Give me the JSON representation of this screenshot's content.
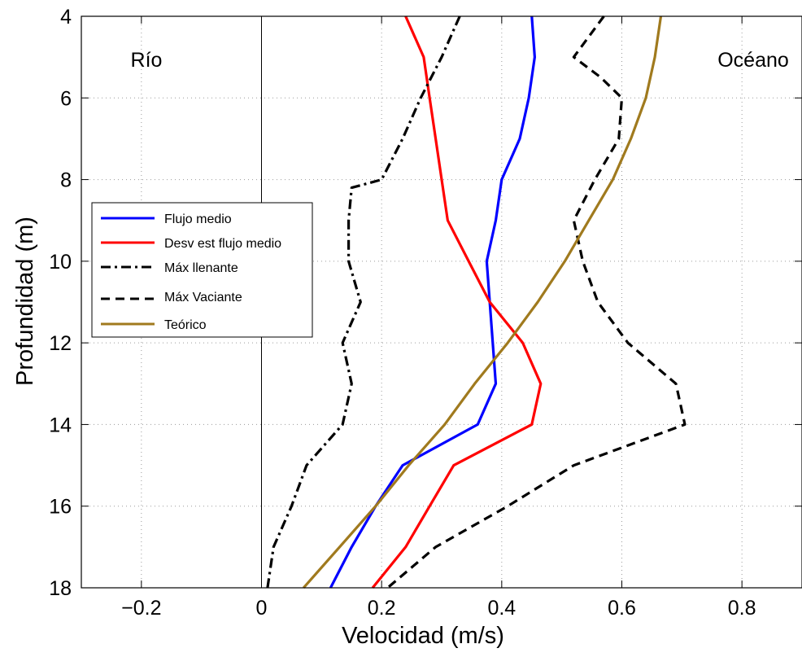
{
  "chart_data": {
    "type": "line",
    "title": "",
    "xlabel": "Velocidad (m/s)",
    "ylabel": "Profundidad (m)",
    "xlim": [
      -0.3,
      0.9
    ],
    "ylim": [
      4,
      18
    ],
    "y_reversed": true,
    "grid": true,
    "x_ticks": [
      -0.2,
      0,
      0.2,
      0.4,
      0.6,
      0.8
    ],
    "x_tick_labels": [
      "−0.2",
      "0",
      "0.2",
      "0.4",
      "0.6",
      "0.8"
    ],
    "y_ticks": [
      4,
      6,
      8,
      10,
      12,
      14,
      16,
      18
    ],
    "y_tick_labels": [
      "4",
      "6",
      "8",
      "10",
      "12",
      "14",
      "16",
      "18"
    ],
    "reference_line_x": 0,
    "legend_position": "middle-left",
    "annotations": [
      {
        "text": "Río",
        "x": -0.2,
        "y": 5
      },
      {
        "text": "Océano",
        "x": 0.8,
        "y": 5
      }
    ],
    "series": [
      {
        "name": "Flujo medio",
        "color": "#0000ff",
        "style": "solid",
        "points": [
          [
            0.45,
            4
          ],
          [
            0.455,
            5
          ],
          [
            0.445,
            6
          ],
          [
            0.43,
            7
          ],
          [
            0.4,
            8
          ],
          [
            0.39,
            9
          ],
          [
            0.375,
            10
          ],
          [
            0.38,
            11
          ],
          [
            0.385,
            12
          ],
          [
            0.39,
            13
          ],
          [
            0.36,
            14
          ],
          [
            0.235,
            15
          ],
          [
            0.19,
            16
          ],
          [
            0.15,
            17
          ],
          [
            0.115,
            18
          ]
        ]
      },
      {
        "name": "Desv est flujo medio",
        "color": "#ff0000",
        "style": "solid",
        "points": [
          [
            0.24,
            4
          ],
          [
            0.27,
            5
          ],
          [
            0.28,
            6
          ],
          [
            0.29,
            7
          ],
          [
            0.3,
            8
          ],
          [
            0.31,
            9
          ],
          [
            0.345,
            10
          ],
          [
            0.38,
            11
          ],
          [
            0.435,
            12
          ],
          [
            0.465,
            13
          ],
          [
            0.45,
            14
          ],
          [
            0.32,
            15
          ],
          [
            0.28,
            16
          ],
          [
            0.24,
            17
          ],
          [
            0.185,
            18
          ]
        ]
      },
      {
        "name": "Máx llenante",
        "color": "#000000",
        "style": "dashdot",
        "points": [
          [
            0.33,
            4
          ],
          [
            0.3,
            5
          ],
          [
            0.265,
            6
          ],
          [
            0.235,
            7
          ],
          [
            0.2,
            8
          ],
          [
            0.15,
            8.2
          ],
          [
            0.145,
            9
          ],
          [
            0.145,
            10
          ],
          [
            0.165,
            11
          ],
          [
            0.135,
            12
          ],
          [
            0.15,
            13
          ],
          [
            0.135,
            14
          ],
          [
            0.075,
            15
          ],
          [
            0.05,
            16
          ],
          [
            0.02,
            17
          ],
          [
            0.01,
            18
          ]
        ]
      },
      {
        "name": "Máx Vaciante",
        "color": "#000000",
        "style": "dashed",
        "points": [
          [
            0.57,
            4
          ],
          [
            0.52,
            5
          ],
          [
            0.565,
            5.5
          ],
          [
            0.6,
            6
          ],
          [
            0.595,
            7
          ],
          [
            0.555,
            8
          ],
          [
            0.52,
            9
          ],
          [
            0.535,
            10
          ],
          [
            0.56,
            11
          ],
          [
            0.61,
            12
          ],
          [
            0.69,
            13
          ],
          [
            0.705,
            14
          ],
          [
            0.52,
            15
          ],
          [
            0.41,
            16
          ],
          [
            0.29,
            17
          ],
          [
            0.21,
            18
          ]
        ]
      },
      {
        "name": "Teórico",
        "color": "#a07a1e",
        "style": "solid",
        "points": [
          [
            0.665,
            4
          ],
          [
            0.655,
            5
          ],
          [
            0.64,
            6
          ],
          [
            0.615,
            7
          ],
          [
            0.585,
            8
          ],
          [
            0.545,
            9
          ],
          [
            0.505,
            10
          ],
          [
            0.46,
            11
          ],
          [
            0.41,
            12
          ],
          [
            0.355,
            13
          ],
          [
            0.305,
            14
          ],
          [
            0.245,
            15
          ],
          [
            0.19,
            16
          ],
          [
            0.13,
            17
          ],
          [
            0.07,
            18
          ]
        ]
      }
    ]
  }
}
